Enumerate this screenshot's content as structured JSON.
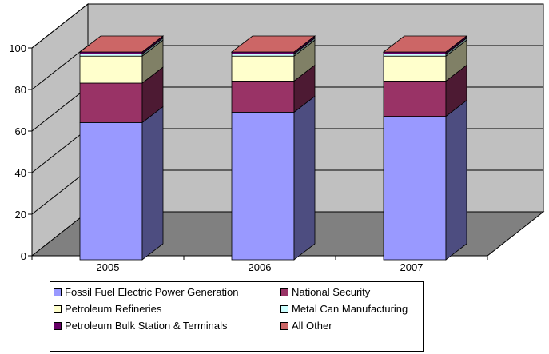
{
  "chart_data": {
    "type": "bar",
    "stacked": true,
    "three_d": true,
    "categories": [
      "2005",
      "2006",
      "2007"
    ],
    "y_ticks": [
      "0",
      "20",
      "40",
      "60",
      "80",
      "100"
    ],
    "ylim": [
      0,
      100
    ],
    "grid": true,
    "legend_position": "bottom",
    "series": [
      {
        "name": "Fossil Fuel Electric Power Generation",
        "values": [
          66,
          71,
          69
        ],
        "color": "#9999ff"
      },
      {
        "name": "National Security",
        "values": [
          19,
          15,
          17
        ],
        "color": "#993366"
      },
      {
        "name": "Petroleum Refineries",
        "values": [
          13,
          12,
          12
        ],
        "color": "#ffffcc"
      },
      {
        "name": "Metal Can Manufacturing",
        "values": [
          1,
          1,
          1
        ],
        "color": "#ccffff"
      },
      {
        "name": "Petroleum Bulk Station & Terminals",
        "values": [
          1,
          1,
          1
        ],
        "color": "#660066"
      },
      {
        "name": "All Other",
        "values": [
          0,
          0,
          0
        ],
        "color": "#cc6666"
      }
    ]
  }
}
